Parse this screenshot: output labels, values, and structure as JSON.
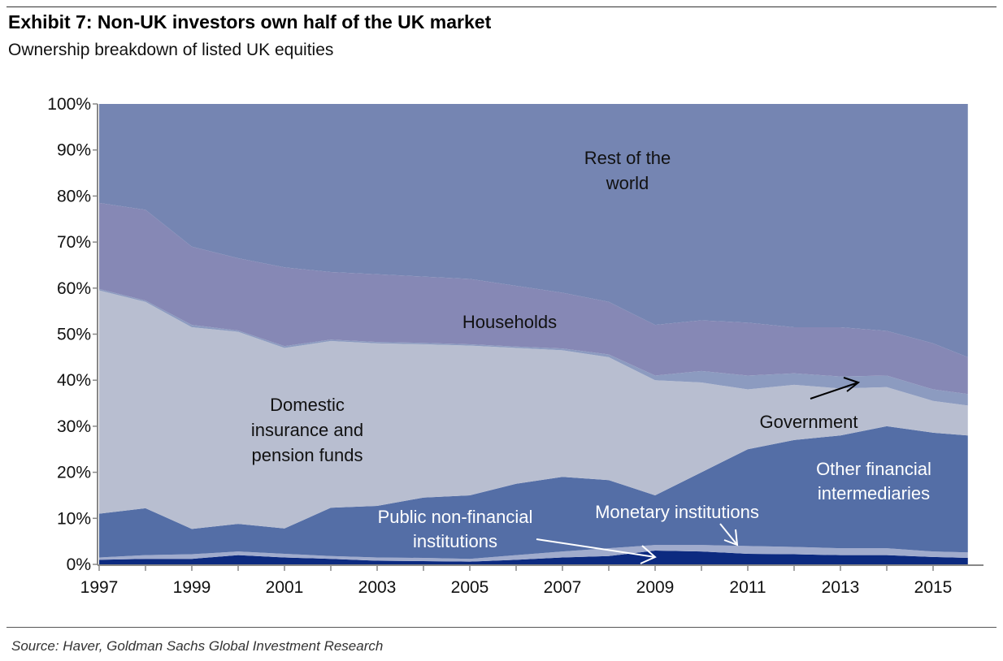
{
  "title": "Exhibit 7: Non-UK investors own half of the UK market",
  "subtitle": "Ownership breakdown of listed UK equities",
  "source": "Source: Haver, Goldman Sachs Global Investment Research",
  "chart_data": {
    "type": "area",
    "stacked": true,
    "title": "Exhibit 7: Non-UK investors own half of the UK market",
    "subtitle": "Ownership breakdown of listed UK equities",
    "xlabel": "",
    "ylabel": "",
    "xlim": [
      1997,
      2015.75
    ],
    "ylim": [
      0,
      100
    ],
    "x_ticks": [
      "1997",
      "1999",
      "2001",
      "2003",
      "2005",
      "2007",
      "2009",
      "2011",
      "2013",
      "2015"
    ],
    "y_ticks": [
      "0%",
      "10%",
      "20%",
      "30%",
      "40%",
      "50%",
      "60%",
      "70%",
      "80%",
      "90%",
      "100%"
    ],
    "grid": false,
    "legend": "none (direct labels)",
    "x": [
      1997,
      1998,
      1999,
      2000,
      2001,
      2002,
      2003,
      2004,
      2005,
      2006,
      2007,
      2008,
      2009,
      2010,
      2011,
      2012,
      2013,
      2014,
      2015,
      2015.75
    ],
    "series": [
      {
        "name": "Monetary institutions",
        "color": "#0c2a80",
        "values": [
          1.0,
          1.2,
          1.2,
          2.0,
          1.5,
          1.2,
          0.8,
          0.7,
          0.6,
          1.0,
          1.5,
          1.8,
          3.0,
          2.8,
          2.3,
          2.2,
          2.0,
          2.0,
          1.6,
          1.4
        ]
      },
      {
        "name": "Public non-financial institutions",
        "color": "#a0abcc",
        "values": [
          0.5,
          0.8,
          1.0,
          0.8,
          0.8,
          0.6,
          0.7,
          0.7,
          0.6,
          1.0,
          1.3,
          1.7,
          1.2,
          1.4,
          1.7,
          1.6,
          1.5,
          1.5,
          1.2,
          1.2
        ]
      },
      {
        "name": "Other financial intermediaries",
        "color": "#546ea6",
        "values": [
          9.5,
          10.2,
          5.5,
          6.0,
          5.5,
          10.5,
          11.2,
          13.1,
          13.8,
          15.5,
          16.2,
          14.8,
          10.8,
          15.8,
          21.0,
          23.2,
          24.5,
          26.5,
          25.8,
          25.4
        ]
      },
      {
        "name": "Domestic insurance and pension funds",
        "color": "#b8bed0",
        "values": [
          48.5,
          44.8,
          43.8,
          41.7,
          39.2,
          36.2,
          35.3,
          33.3,
          32.5,
          29.5,
          27.5,
          26.7,
          25.0,
          19.5,
          13.0,
          12.0,
          10.2,
          8.5,
          6.9,
          6.5
        ]
      },
      {
        "name": "Government",
        "color": "#8c9bc0",
        "values": [
          0.3,
          0.3,
          0.5,
          0.3,
          0.4,
          0.3,
          0.3,
          0.3,
          0.3,
          0.3,
          0.4,
          0.6,
          1.0,
          2.5,
          3.0,
          2.5,
          2.6,
          2.5,
          2.5,
          2.5
        ]
      },
      {
        "name": "Households",
        "color": "#8688b5",
        "values": [
          18.7,
          19.7,
          17.0,
          15.7,
          17.1,
          14.7,
          14.7,
          14.4,
          14.2,
          13.2,
          12.1,
          11.4,
          11.0,
          11.0,
          11.5,
          10.0,
          10.7,
          9.7,
          10.0,
          8.0
        ]
      },
      {
        "name": "Rest of the world",
        "color": "#7585b2",
        "values": [
          21.5,
          23.0,
          31.0,
          33.5,
          35.5,
          36.5,
          37.0,
          37.5,
          38.0,
          39.5,
          41.0,
          43.0,
          48.0,
          47.0,
          47.5,
          48.5,
          48.5,
          49.3,
          52.0,
          55.0
        ]
      }
    ],
    "annotations": {
      "row": [
        "Rest of the",
        "world"
      ],
      "households": "Households",
      "insurance": [
        "Domestic",
        "insurance and",
        "pension funds"
      ],
      "government": "Government",
      "ofi": [
        "Other financial",
        "intermediaries"
      ],
      "pnf": [
        "Public non-financial",
        "institutions"
      ],
      "monetary": "Monetary institutions"
    }
  }
}
